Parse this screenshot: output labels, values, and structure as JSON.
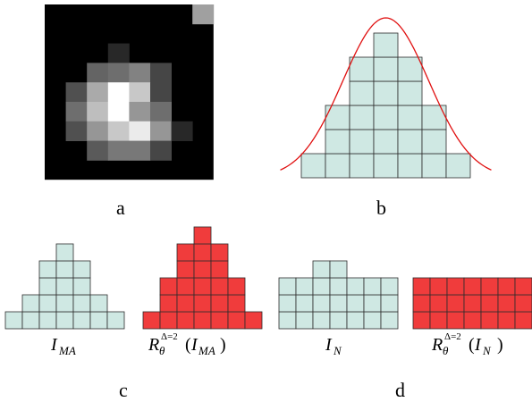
{
  "colors": {
    "teal": "#cfe8e3",
    "red": "#f03c3c",
    "grid": "#2b2b2b",
    "curve": "#e01010"
  },
  "panels": {
    "a": {
      "label": "a",
      "pixels": [
        [
          0,
          0,
          0,
          0,
          0,
          0,
          0,
          160
        ],
        [
          0,
          0,
          0,
          0,
          0,
          0,
          0,
          0
        ],
        [
          0,
          0,
          0,
          40,
          0,
          0,
          0,
          0
        ],
        [
          0,
          0,
          100,
          110,
          130,
          70,
          0,
          0
        ],
        [
          0,
          80,
          170,
          255,
          200,
          70,
          0,
          0
        ],
        [
          0,
          110,
          190,
          255,
          150,
          110,
          0,
          0
        ],
        [
          0,
          80,
          150,
          200,
          235,
          150,
          40,
          0
        ],
        [
          0,
          0,
          90,
          120,
          120,
          70,
          0,
          0
        ],
        [
          0,
          0,
          0,
          0,
          0,
          0,
          0,
          0
        ]
      ]
    },
    "b": {
      "label": "b",
      "heights": [
        1,
        3,
        5,
        6,
        5,
        3,
        1
      ]
    },
    "c": {
      "label": "c",
      "left_heights": [
        1,
        2,
        4,
        5,
        4,
        2,
        1
      ],
      "right_heights": [
        1,
        3,
        5,
        6,
        5,
        3,
        1
      ],
      "left_expr": {
        "base": "I",
        "sub": "MA"
      },
      "right_expr": {
        "base": "R",
        "sub": "θ",
        "sup": "Δ=2",
        "arg_base": "I",
        "arg_sub": "MA"
      }
    },
    "d": {
      "label": "d",
      "left_heights": [
        3,
        3,
        4,
        4,
        3,
        3,
        3
      ],
      "right_heights": [
        3,
        3,
        3,
        3,
        3,
        3,
        3
      ],
      "left_expr": {
        "base": "I",
        "sub": "N"
      },
      "right_expr": {
        "base": "R",
        "sub": "θ",
        "sup": "Δ=2",
        "arg_base": "I",
        "arg_sub": "N"
      }
    }
  }
}
